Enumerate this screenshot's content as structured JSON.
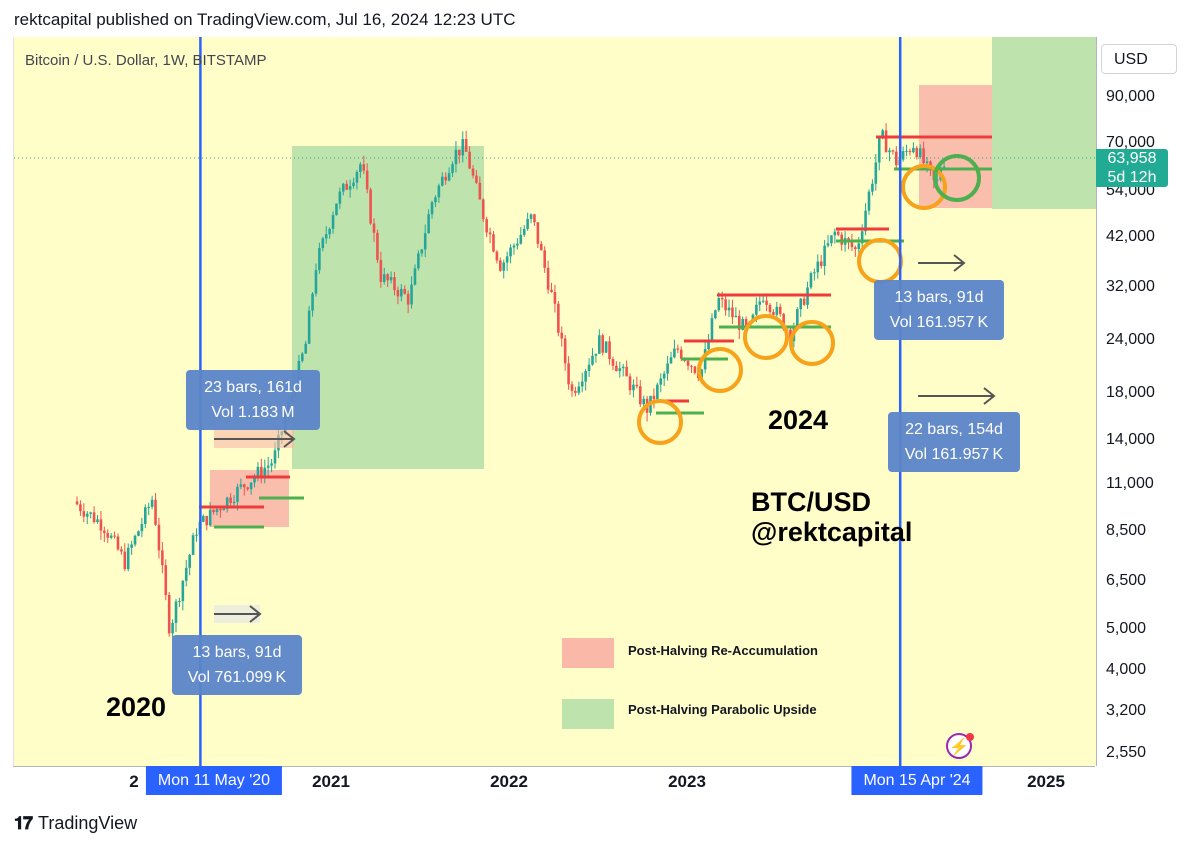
{
  "header": "rektcapital published on TradingView.com, Jul 16, 2024 12:23 UTC",
  "symbol_title": "Bitcoin / U.S. Dollar, 1W, BITSTAMP",
  "currency": "USD",
  "brand": "TradingView",
  "colors": {
    "chart_bg": "#fffec9",
    "up_candle": "#26a69a",
    "down_candle": "#ef5350",
    "red_zone": "#f9b8a8",
    "green_zone": "#bfe3ad",
    "halving_line": "#2962ff",
    "box": "#5c85c9",
    "circle_orange": "#f7a21b",
    "circle_green": "#4caf50",
    "price_tag": "#22ab94"
  },
  "current_price": {
    "value": "63,958",
    "countdown": "5d 12h"
  },
  "halving_badges": [
    {
      "label": "Mon 11 May '20"
    },
    {
      "label": "Mon 15 Apr '24"
    }
  ],
  "info_boxes": [
    {
      "line1": "23 bars, 161d",
      "line2": "Vol 1.183 M"
    },
    {
      "line1": "13 bars, 91d",
      "line2": "Vol 761.099 K"
    },
    {
      "line1": "13 bars, 91d",
      "line2": "Vol 161.957 K"
    },
    {
      "line1": "22 bars, 154d",
      "line2": "Vol 161.957 K"
    }
  ],
  "annotations": {
    "year_2020": "2020",
    "year_2024": "2024",
    "pair_line1": "BTC/USD",
    "pair_line2": "@rektcapital"
  },
  "legend": [
    {
      "label": "Post-Halving Re-Accumulation",
      "color": "#f9b8a8"
    },
    {
      "label": "Post-Halving Parabolic Upside",
      "color": "#bfe3ad"
    }
  ],
  "icons": {
    "flash": "lightning-icon"
  },
  "chart_data": {
    "type": "candlestick",
    "title": "Bitcoin / U.S. Dollar, 1W, BITSTAMP",
    "y_scale": "log",
    "ylim": [
      2300,
      115000
    ],
    "y_ticks": [
      "90,000",
      "70,000",
      "54,000",
      "42,000",
      "32,000",
      "24,000",
      "18,000",
      "14,000",
      "11,000",
      "8,500",
      "6,500",
      "5,000",
      "4,000",
      "3,200",
      "2,550"
    ],
    "x_ticks": [
      "2",
      "2021",
      "2022",
      "2023",
      "2025"
    ],
    "grid": false,
    "price_path": [
      [
        "2019-09-01",
        10000
      ],
      [
        "2019-11-01",
        8800
      ],
      [
        "2019-12-15",
        7200
      ],
      [
        "2020-02-10",
        10200
      ],
      [
        "2020-03-16",
        5000
      ],
      [
        "2020-05-11",
        8700
      ],
      [
        "2020-07-20",
        10300
      ],
      [
        "2020-10-15",
        12500
      ],
      [
        "2020-12-20",
        23500
      ],
      [
        "2021-01-10",
        36000
      ],
      [
        "2021-02-20",
        51000
      ],
      [
        "2021-04-13",
        63000
      ],
      [
        "2021-05-23",
        34000
      ],
      [
        "2021-07-20",
        30000
      ],
      [
        "2021-09-05",
        51000
      ],
      [
        "2021-10-20",
        66000
      ],
      [
        "2021-11-10",
        69000
      ],
      [
        "2021-12-20",
        47000
      ],
      [
        "2022-01-24",
        36000
      ],
      [
        "2022-03-29",
        47000
      ],
      [
        "2022-05-10",
        30000
      ],
      [
        "2022-06-18",
        18000
      ],
      [
        "2022-08-15",
        24000
      ],
      [
        "2022-10-15",
        19000
      ],
      [
        "2022-11-21",
        16500
      ],
      [
        "2023-01-20",
        23000
      ],
      [
        "2023-03-10",
        20000
      ],
      [
        "2023-04-14",
        30000
      ],
      [
        "2023-06-15",
        25000
      ],
      [
        "2023-07-15",
        31000
      ],
      [
        "2023-09-10",
        25000
      ],
      [
        "2023-10-25",
        34000
      ],
      [
        "2023-12-10",
        43000
      ],
      [
        "2024-01-23",
        39000
      ],
      [
        "2024-02-28",
        60000
      ],
      [
        "2024-03-14",
        73000
      ],
      [
        "2024-04-15",
        63000
      ],
      [
        "2024-05-20",
        70000
      ],
      [
        "2024-07-05",
        55000
      ],
      [
        "2024-07-16",
        63958
      ]
    ],
    "halvings": [
      "2020-05-11",
      "2024-04-15"
    ]
  }
}
